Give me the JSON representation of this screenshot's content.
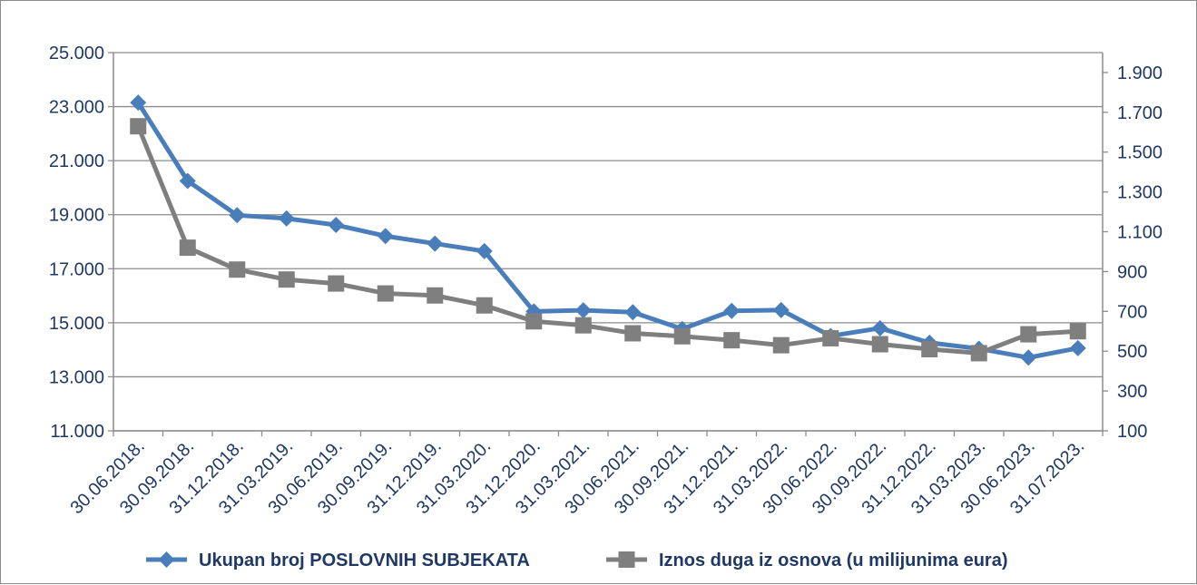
{
  "chart_data": {
    "type": "line",
    "categories": [
      "30.06.2018.",
      "30.09.2018.",
      "31.12.2018.",
      "31.03.2019.",
      "30.06.2019.",
      "30.09.2019.",
      "31.12.2019.",
      "31.03.2020.",
      "31.12.2020.",
      "31.03.2021.",
      "30.06.2021.",
      "30.09.2021.",
      "31.12.2021.",
      "31.03.2022.",
      "30.06.2022.",
      "30.09.2022.",
      "31.12.2022.",
      "31.03.2023.",
      "30.06.2023.",
      "31.07.2023."
    ],
    "series": [
      {
        "name": "Ukupan broj POSLOVNIH SUBJEKATA",
        "axis": "left",
        "color": "#4a7ebb",
        "marker": "diamond",
        "values": [
          23150,
          20250,
          18980,
          18860,
          18620,
          18210,
          17930,
          17650,
          15420,
          15460,
          15390,
          14770,
          15440,
          15470,
          14510,
          14800,
          14260,
          14040,
          13710,
          14060
        ]
      },
      {
        "name": "Iznos duga iz osnova (u milijunima eura)",
        "axis": "right",
        "color": "#7f7f7f",
        "marker": "square",
        "values": [
          1630,
          1020,
          910,
          860,
          840,
          790,
          780,
          730,
          650,
          630,
          590,
          575,
          555,
          530,
          565,
          535,
          510,
          490,
          585,
          600
        ]
      }
    ],
    "y_left": {
      "min": 11000,
      "max": 25000,
      "ticks": [
        11000,
        13000,
        15000,
        17000,
        19000,
        21000,
        23000,
        25000
      ],
      "tick_labels": [
        "11.000",
        "13.000",
        "15.000",
        "17.000",
        "19.000",
        "21.000",
        "23.000",
        "25.000"
      ]
    },
    "y_right": {
      "min": 100,
      "max": 2000,
      "ticks": [
        100,
        300,
        500,
        700,
        900,
        1100,
        1300,
        1500,
        1700,
        1900
      ],
      "tick_labels": [
        "100",
        "300",
        "500",
        "700",
        "900",
        "1.100",
        "1.300",
        "1.500",
        "1.700",
        "1.900"
      ]
    },
    "grid": true,
    "legend_position": "bottom",
    "colors": {
      "text": "#1f3864",
      "grid": "#8c8c8c",
      "axis": "#8c8c8c"
    }
  }
}
